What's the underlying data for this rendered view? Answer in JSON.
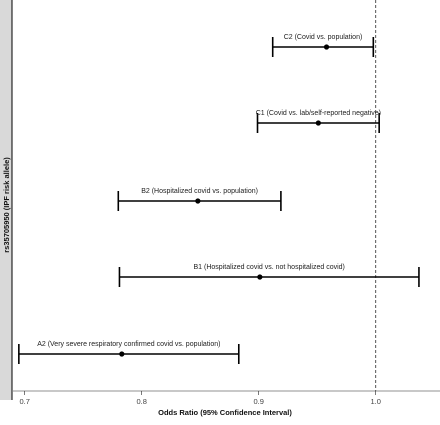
{
  "chart_data": {
    "type": "forest",
    "xlabel": "Odds Ratio (95% Confidence Interval)",
    "ylabel": "rs35705950 (IPF risk allele)",
    "xlim": [
      0.69,
      1.055
    ],
    "xticks": [
      0.7,
      0.8,
      0.9,
      1.0
    ],
    "xtick_labels": [
      "0.7",
      "0.8",
      "0.9",
      "1.0"
    ],
    "reference_line": 1.0,
    "reference_style": "dashed",
    "grid": false,
    "rows": [
      {
        "label": "C2 (Covid vs. population)",
        "or": 0.958,
        "lower": 0.912,
        "upper": 0.998
      },
      {
        "label": "C1 (Covid vs. lab/self-reported negative)",
        "or": 0.951,
        "lower": 0.899,
        "upper": 1.003
      },
      {
        "label": "B2 (Hospitalized covid vs. population)",
        "or": 0.848,
        "lower": 0.78,
        "upper": 0.919
      },
      {
        "label": "B1 (Hospitalized covid vs. not hospitalized covid)",
        "or": 0.901,
        "lower": 0.781,
        "upper": 1.037
      },
      {
        "label": "A2 (Very severe respiratory confirmed covid vs. population)",
        "or": 0.783,
        "lower": 0.695,
        "upper": 0.883
      }
    ],
    "colors": {
      "line": "#000000",
      "point": "#000000",
      "reference": "#555555",
      "left_strip": "#d9d9d9"
    }
  }
}
